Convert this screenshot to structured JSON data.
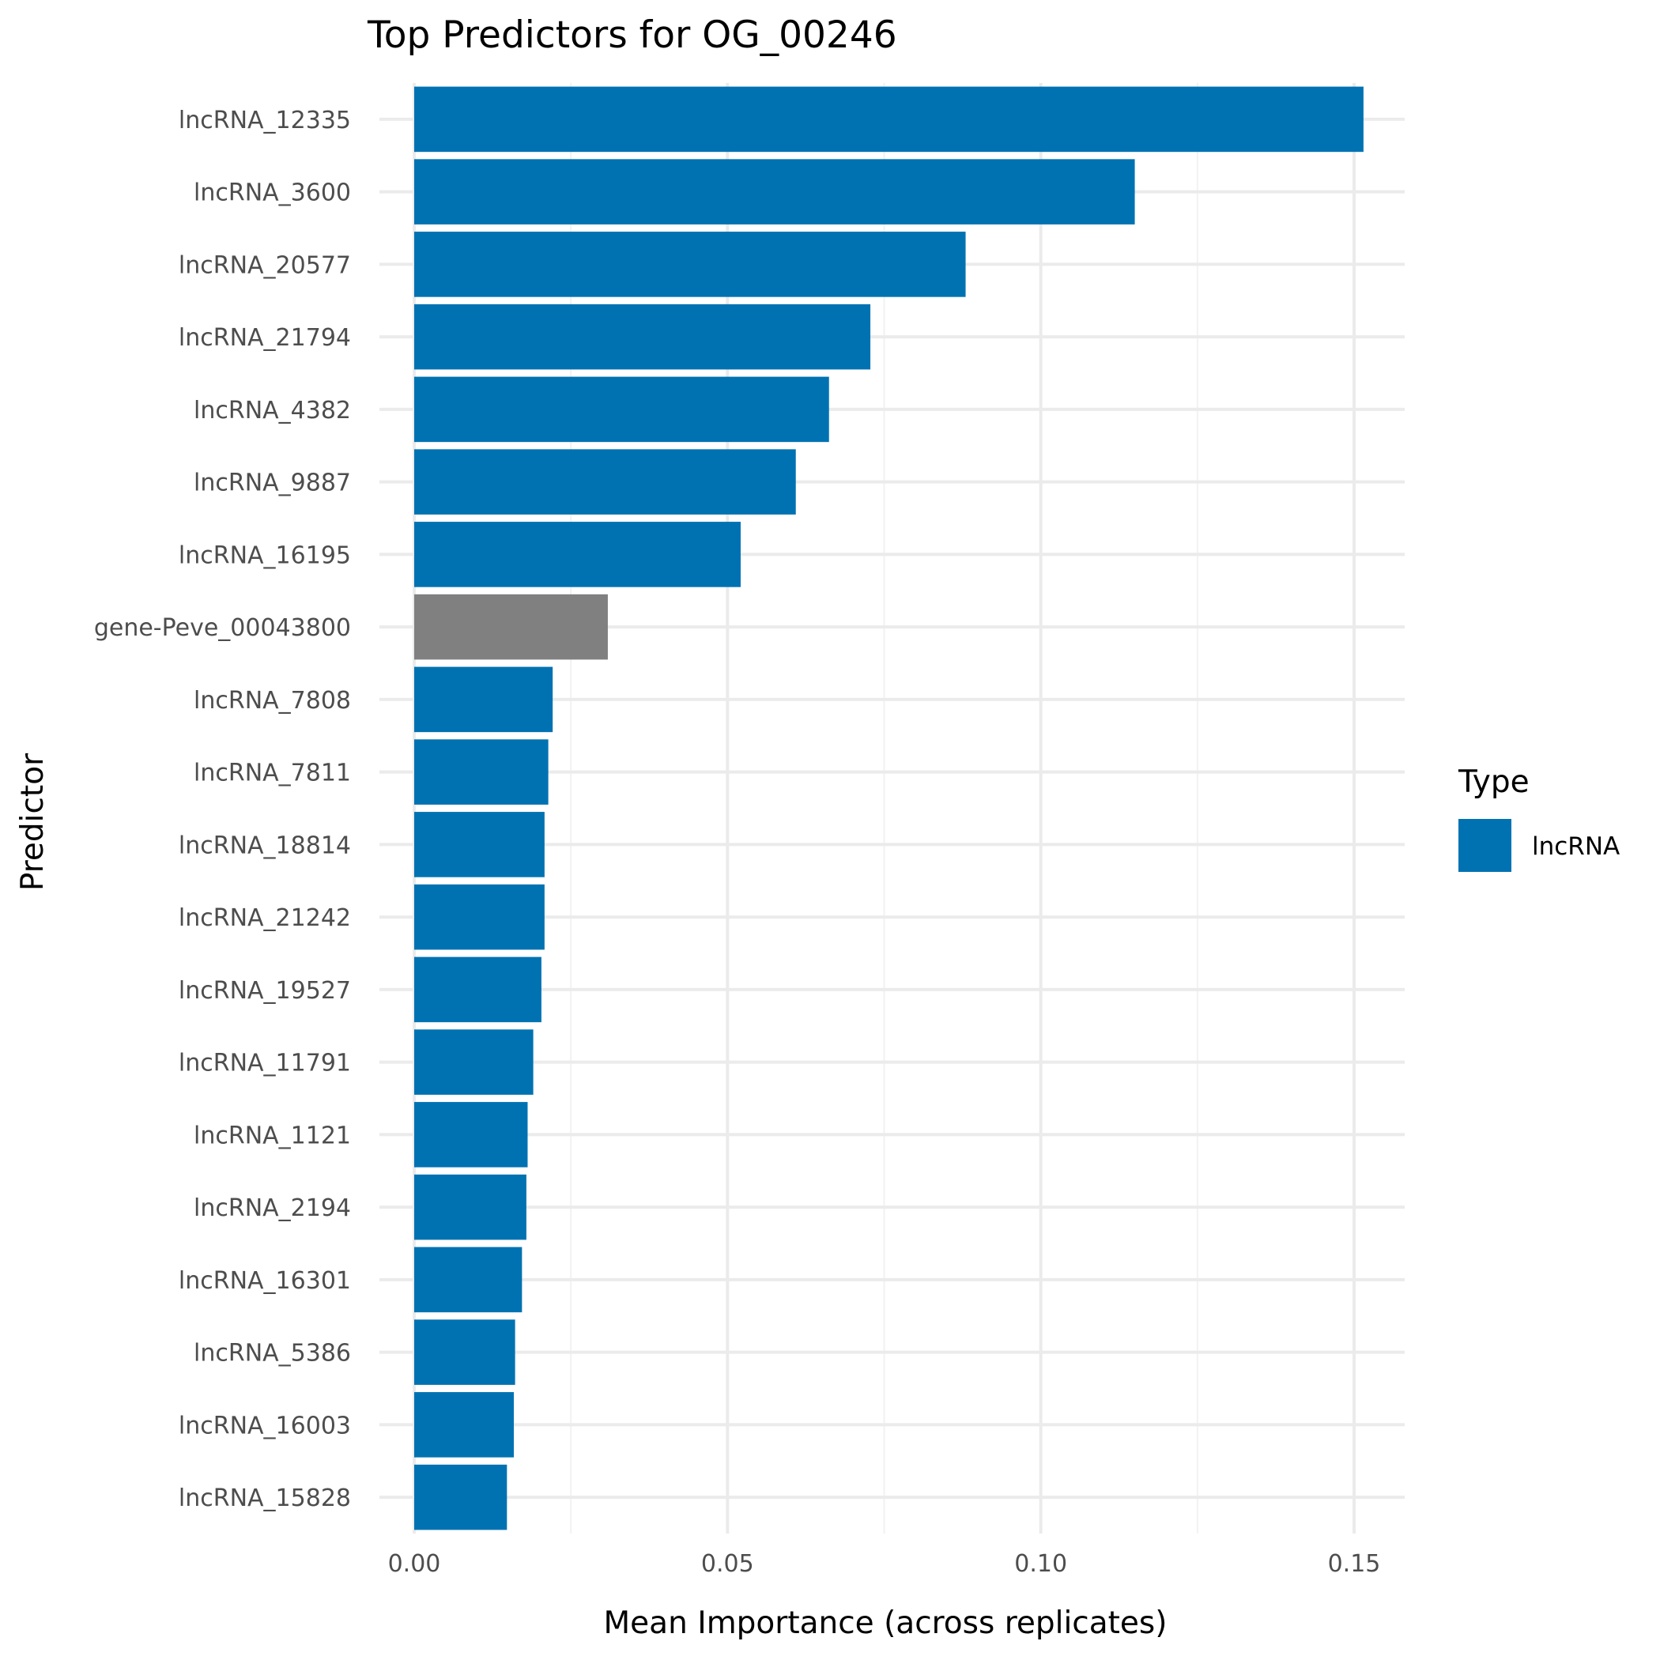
{
  "chart_data": {
    "type": "bar",
    "orientation": "horizontal",
    "title": "Top Predictors for OG_00246",
    "xlabel": "Mean Importance (across replicates)",
    "ylabel": "Predictor",
    "xlim": [
      0,
      0.16
    ],
    "xticks": [
      0.0,
      0.05,
      0.1,
      0.15
    ],
    "xtick_labels": [
      "0.00",
      "0.05",
      "0.10",
      "0.15"
    ],
    "grid": true,
    "legend": {
      "title": "Type",
      "placement": "right",
      "entries": [
        {
          "label": "lncRNA",
          "color": "#0072B2"
        }
      ]
    },
    "categories": [
      "lncRNA_12335",
      "lncRNA_3600",
      "lncRNA_20577",
      "lncRNA_21794",
      "lncRNA_4382",
      "lncRNA_9887",
      "lncRNA_16195",
      "gene-Peve_00043800",
      "lncRNA_7808",
      "lncRNA_7811",
      "lncRNA_18814",
      "lncRNA_21242",
      "lncRNA_19527",
      "lncRNA_11791",
      "lncRNA_1121",
      "lncRNA_2194",
      "lncRNA_16301",
      "lncRNA_5386",
      "lncRNA_16003",
      "lncRNA_15828"
    ],
    "values": [
      0.1515,
      0.115,
      0.088,
      0.0728,
      0.0662,
      0.0609,
      0.0521,
      0.0309,
      0.0221,
      0.0214,
      0.0208,
      0.0208,
      0.0203,
      0.019,
      0.0181,
      0.0179,
      0.0172,
      0.0161,
      0.0159,
      0.0148
    ],
    "colors": [
      "#0072B2",
      "#0072B2",
      "#0072B2",
      "#0072B2",
      "#0072B2",
      "#0072B2",
      "#0072B2",
      "#808080",
      "#0072B2",
      "#0072B2",
      "#0072B2",
      "#0072B2",
      "#0072B2",
      "#0072B2",
      "#0072B2",
      "#0072B2",
      "#0072B2",
      "#0072B2",
      "#0072B2",
      "#0072B2"
    ]
  }
}
